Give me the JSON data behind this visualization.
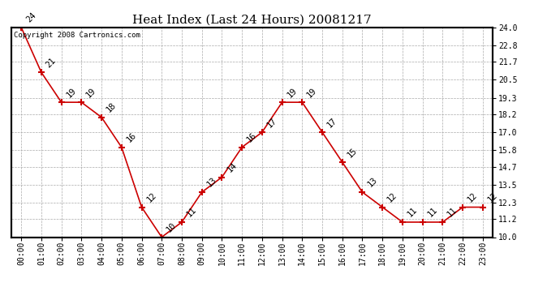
{
  "title": "Heat Index (Last 24 Hours) 20081217",
  "copyright": "Copyright 2008 Cartronics.com",
  "x_labels": [
    "00:00",
    "01:00",
    "02:00",
    "03:00",
    "04:00",
    "05:00",
    "06:00",
    "07:00",
    "08:00",
    "09:00",
    "10:00",
    "11:00",
    "12:00",
    "13:00",
    "14:00",
    "15:00",
    "16:00",
    "17:00",
    "18:00",
    "19:00",
    "20:00",
    "21:00",
    "22:00",
    "23:00"
  ],
  "y_values": [
    24,
    21,
    19,
    19,
    18,
    16,
    12,
    10,
    11,
    13,
    14,
    16,
    17,
    19,
    19,
    17,
    15,
    13,
    12,
    11,
    11,
    11,
    12,
    12
  ],
  "point_labels": [
    "24",
    "21",
    "19",
    "19",
    "18",
    "16",
    "12",
    "10",
    "11",
    "13",
    "14",
    "16",
    "17",
    "19",
    "19",
    "17",
    "15",
    "13",
    "12",
    "11",
    "11",
    "11",
    "12",
    "12"
  ],
  "ylim": [
    10.0,
    24.0
  ],
  "yticks": [
    10.0,
    11.2,
    12.3,
    13.5,
    14.7,
    15.8,
    17.0,
    18.2,
    19.3,
    20.5,
    21.7,
    22.8,
    24.0
  ],
  "line_color": "#cc0000",
  "marker_color": "#cc0000",
  "bg_color": "#ffffff",
  "grid_color": "#aaaaaa",
  "title_fontsize": 11,
  "tick_fontsize": 7,
  "annotation_fontsize": 7.5,
  "copyright_fontsize": 6.5
}
